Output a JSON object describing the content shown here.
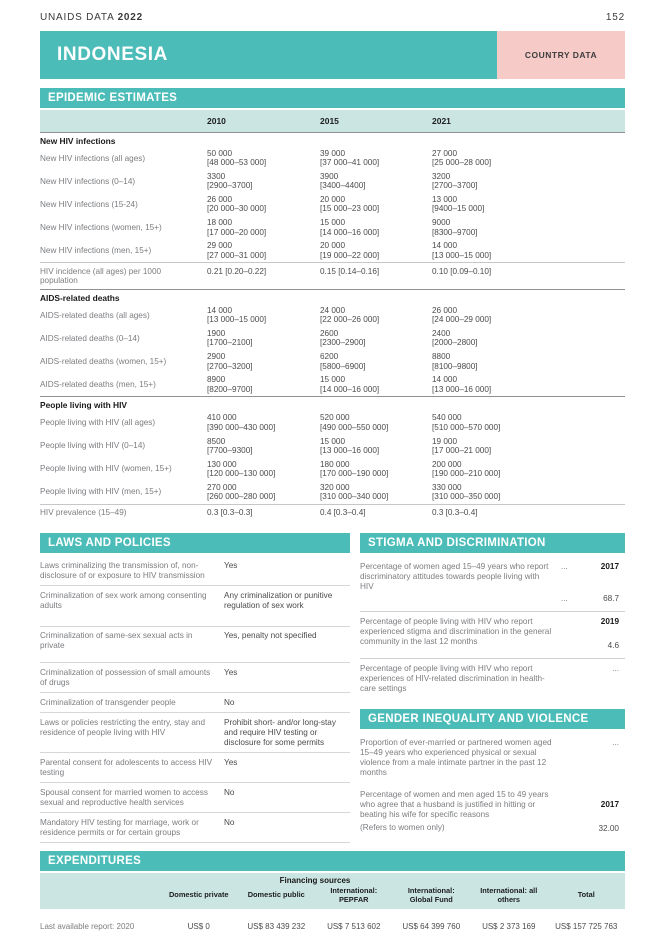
{
  "page": {
    "brand": "UNAIDS DATA",
    "brand_year": "2022",
    "page_number": "152"
  },
  "banner": {
    "country": "INDONESIA",
    "badge": "COUNTRY DATA"
  },
  "colors": {
    "teal": "#4cbcb9",
    "light_teal": "#cbe6e2",
    "pink": "#f6cac6"
  },
  "epidemic": {
    "title": "EPIDEMIC ESTIMATES",
    "years": [
      "2010",
      "2015",
      "2021"
    ],
    "rows": [
      {
        "type": "group",
        "label": "New HIV infections"
      },
      {
        "label": "New HIV infections (all ages)",
        "values": [
          "50 000",
          "39 000",
          "27 000"
        ],
        "ranges": [
          "[48 000–53 000]",
          "[37 000–41 000]",
          "[25 000–28 000]"
        ]
      },
      {
        "label": "New HIV infections (0–14)",
        "values": [
          "3300",
          "3900",
          "3200"
        ],
        "ranges": [
          "[2900–3700]",
          "[3400–4400]",
          "[2700–3700]"
        ]
      },
      {
        "label": "New HIV infections (15-24)",
        "values": [
          "26 000",
          "20 000",
          "13 000"
        ],
        "ranges": [
          "[20 000–30 000]",
          "[15 000–23 000]",
          "[9400–15 000]"
        ]
      },
      {
        "label": "New HIV infections (women, 15+)",
        "values": [
          "18 000",
          "15 000",
          "9000"
        ],
        "ranges": [
          "[17 000–20 000]",
          "[14 000–16 000]",
          "[8300–9700]"
        ]
      },
      {
        "label": "New HIV infections (men, 15+)",
        "values": [
          "29 000",
          "20 000",
          "14 000"
        ],
        "ranges": [
          "[27 000–31 000]",
          "[19 000–22 000]",
          "[13 000–15 000]"
        ]
      },
      {
        "type": "single",
        "label": "HIV incidence (all ages) per 1000 population",
        "values": [
          "0.21 [0.20–0.22]",
          "0.15 [0.14–0.16]",
          "0.10 [0.09–0.10]"
        ]
      },
      {
        "type": "group",
        "label": "AIDS-related deaths"
      },
      {
        "label": "AIDS-related deaths (all ages)",
        "values": [
          "14 000",
          "24 000",
          "26 000"
        ],
        "ranges": [
          "[13 000–15 000]",
          "[22 000–26 000]",
          "[24 000–29 000]"
        ]
      },
      {
        "label": "AIDS-related deaths (0–14)",
        "values": [
          "1900",
          "2600",
          "2400"
        ],
        "ranges": [
          "[1700–2100]",
          "[2300–2900]",
          "[2000–2800]"
        ]
      },
      {
        "label": "AIDS-related deaths (women, 15+)",
        "values": [
          "2900",
          "6200",
          "8800"
        ],
        "ranges": [
          "[2700–3200]",
          "[5800–6900]",
          "[8100–9800]"
        ]
      },
      {
        "label": "AIDS-related deaths (men, 15+)",
        "values": [
          "8900",
          "15 000",
          "14 000"
        ],
        "ranges": [
          "[8200–9700]",
          "[14 000–16 000]",
          "[13 000–16 000]"
        ]
      },
      {
        "type": "group",
        "label": "People living with HIV"
      },
      {
        "label": "People living with HIV (all ages)",
        "values": [
          "410 000",
          "520 000",
          "540 000"
        ],
        "ranges": [
          "[390 000–430 000]",
          "[490 000–550 000]",
          "[510 000–570 000]"
        ]
      },
      {
        "label": "People living with HIV (0–14)",
        "values": [
          "8500",
          "15 000",
          "19 000"
        ],
        "ranges": [
          "[7700–9300]",
          "[13 000–16 000]",
          "[17 000–21 000]"
        ]
      },
      {
        "label": "People living with HIV (women, 15+)",
        "values": [
          "130 000",
          "180 000",
          "200 000"
        ],
        "ranges": [
          "[120 000–130 000]",
          "[170 000–190 000]",
          "[190 000–210 000]"
        ]
      },
      {
        "label": "People living with HIV (men, 15+)",
        "values": [
          "270 000",
          "320 000",
          "330 000"
        ],
        "ranges": [
          "[260 000–280 000]",
          "[310 000–340 000]",
          "[310 000–350 000]"
        ]
      },
      {
        "type": "single",
        "label": "HIV prevalence (15–49)",
        "values": [
          "0.3 [0.3–0.3]",
          "0.4 [0.3–0.4]",
          "0.3 [0.3–0.4]"
        ]
      }
    ]
  },
  "laws": {
    "title": "LAWS AND POLICIES",
    "items": [
      {
        "q": "Laws criminalizing the transmission of, non-disclosure of or exposure to HIV transmission",
        "a": "Yes"
      },
      {
        "q": "Criminalization of sex work among consenting adults",
        "a": "Any criminalization or punitive regulation of sex work"
      },
      {
        "q": "Criminalization of same-sex sexual acts in private",
        "a": "Yes, penalty not specified"
      },
      {
        "q": "Criminalization of possession of small amounts of drugs",
        "a": "Yes"
      },
      {
        "q": "Criminalization of transgender people",
        "a": "No"
      },
      {
        "q": "Laws or policies restricting the entry, stay and residence of people living with HIV",
        "a": "Prohibit short- and/or long-stay and require HIV testing or disclosure for some permits"
      },
      {
        "q": "Parental consent for adolescents to access HIV testing",
        "a": "Yes"
      },
      {
        "q": "Spousal consent for married women to access sexual and reproductive health services",
        "a": "No"
      },
      {
        "q": "Mandatory HIV testing for marriage, work or residence permits or for certain groups",
        "a": "No"
      }
    ]
  },
  "stigma": {
    "title": "STIGMA AND DISCRIMINATION",
    "rows": [
      {
        "q": "Percentage of women aged 15–49 years who report discriminatory attitudes towards people living with HIV",
        "dots1": "...",
        "year": "2017",
        "dots2": "...",
        "value": "68.7"
      },
      {
        "q": "Percentage of people living with HIV who report experienced stigma and discrimination in the general community in the last 12 months",
        "year": "2019",
        "value": "4.6"
      },
      {
        "q": "Percentage of people living with HIV who report experiences of HIV-related discrimination in health-care settings",
        "value": "..."
      }
    ]
  },
  "gender": {
    "title": "GENDER INEQUALITY AND VIOLENCE",
    "rows": [
      {
        "q": "Proportion of ever-married or partnered women aged 15–49 years who experienced physical or sexual violence from a male intimate partner in the past 12 months",
        "value": "..."
      },
      {
        "q": "Percentage of women and men aged 15 to 49 years who agree that a husband is justified in hitting or beating his wife for specific reasons",
        "note": "(Refers to women only)",
        "year": "2017",
        "value": "32.00"
      }
    ]
  },
  "expenditures": {
    "title": "EXPENDITURES",
    "financing_header": "Financing sources",
    "columns": [
      "Domestic private",
      "Domestic public",
      "International: PEPFAR",
      "International: Global Fund",
      "International: all others",
      "Total"
    ],
    "row_label": "Last available report: 2020",
    "values": [
      "US$ 0",
      "US$ 83 439 232",
      "US$ 7 513 602",
      "US$ 64 399 760",
      "US$ 2 373 169",
      "US$ 157 725 763"
    ]
  }
}
